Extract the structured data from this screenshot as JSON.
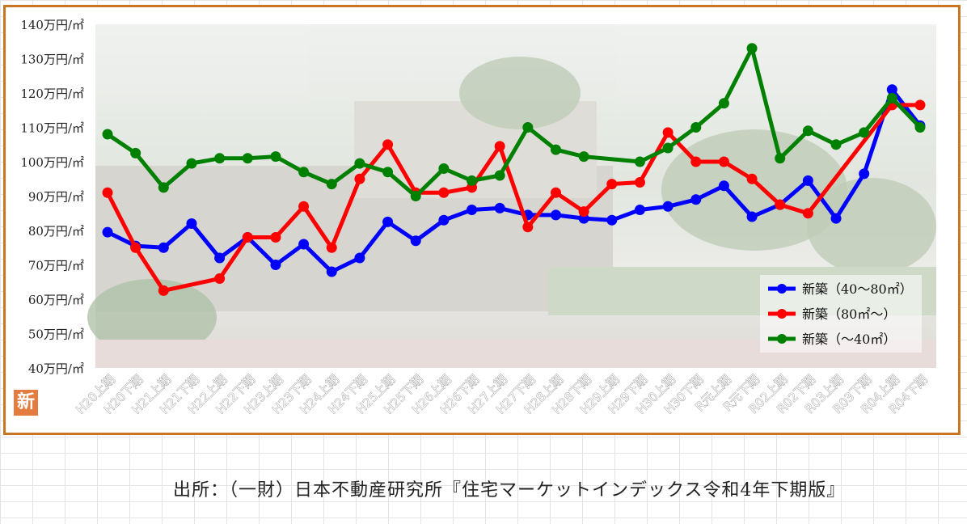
{
  "badge_label": "新",
  "source": "出所：（一財）日本不動産研究所『住宅マーケットインデックス令和4年下期版』",
  "chart_data": {
    "type": "line",
    "title": "",
    "xlabel": "",
    "ylabel": "",
    "ylim": [
      40,
      140
    ],
    "y_ticks": [
      "40万円/㎡",
      "50万円/㎡",
      "60万円/㎡",
      "70万円/㎡",
      "80万円/㎡",
      "90万円/㎡",
      "100万円/㎡",
      "110万円/㎡",
      "120万円/㎡",
      "130万円/㎡",
      "140万円/㎡"
    ],
    "categories": [
      "H20上期",
      "H20下期",
      "H21上期",
      "H21下期",
      "H22上期",
      "H22下期",
      "H23上期",
      "H23下期",
      "H24上期",
      "H24下期",
      "H25上期",
      "H25下期",
      "H26上期",
      "H26下期",
      "H27上期",
      "H27下期",
      "H28上期",
      "H28下期",
      "H29上期",
      "H29下期",
      "H30上期",
      "H30下期",
      "R元上期",
      "R元下期",
      "R02上期",
      "R02下期",
      "R03上期",
      "R03下期",
      "R04上期",
      "R04下期"
    ],
    "legend_position": "bottom-right",
    "series": [
      {
        "name": "新築（40～80㎡）",
        "color": "#0000ff",
        "values": [
          79.5,
          75.5,
          75,
          82,
          72,
          78,
          70,
          76,
          68,
          72,
          82.5,
          77,
          83,
          86,
          86.5,
          84.5,
          84.5,
          83.5,
          83,
          86,
          87,
          89,
          93,
          84,
          87.5,
          94.5,
          83.5,
          96.5,
          121,
          110.5
        ]
      },
      {
        "name": "新築（80㎡～）",
        "color": "#ff0000",
        "values": [
          91,
          75,
          62.5,
          null,
          66,
          78,
          78,
          87,
          75,
          95,
          105,
          91,
          91,
          92.5,
          104.5,
          81,
          91,
          85.5,
          93.5,
          94,
          108.5,
          100,
          100,
          95,
          87.5,
          85,
          null,
          null,
          116.5,
          116.5
        ]
      },
      {
        "name": "新築（～40㎡）",
        "color": "#008000",
        "values": [
          108,
          102.5,
          92.5,
          99.5,
          101,
          101,
          101.5,
          97,
          93.5,
          99.5,
          97,
          90,
          98,
          94.5,
          96,
          110,
          103.5,
          101.5,
          null,
          100,
          104,
          110,
          117,
          133,
          101,
          109,
          105,
          108.5,
          118.5,
          110
        ]
      }
    ]
  }
}
